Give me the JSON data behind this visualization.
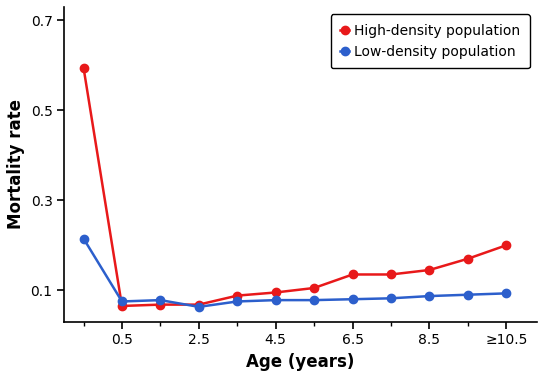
{
  "x_labels": [
    "0.5",
    "2.5",
    "4.5",
    "6.5",
    "8.5",
    "≥10.5"
  ],
  "x_tick_positions": [
    1,
    3,
    5,
    7,
    9,
    11
  ],
  "x_positions": [
    0,
    1,
    2,
    3,
    4,
    5,
    6,
    7,
    8,
    9,
    10,
    11
  ],
  "high_density": [
    0.595,
    0.065,
    0.068,
    0.068,
    0.088,
    0.095,
    0.105,
    0.135,
    0.135,
    0.145,
    0.17,
    0.2
  ],
  "low_density": [
    0.215,
    0.075,
    0.078,
    0.063,
    0.075,
    0.078,
    0.078,
    0.08,
    0.082,
    0.087,
    0.09,
    0.093
  ],
  "high_color": "#e8191a",
  "low_color": "#2c5fcc",
  "ylabel": "Mortality rate",
  "xlabel": "Age (years)",
  "yticks": [
    0.1,
    0.3,
    0.5,
    0.7
  ],
  "ylim": [
    0.03,
    0.73
  ],
  "xlim": [
    -0.5,
    11.8
  ],
  "legend_labels": [
    "High-density population",
    "Low-density population"
  ],
  "marker_size": 6,
  "line_width": 1.8,
  "figsize": [
    5.44,
    3.78
  ],
  "dpi": 100
}
